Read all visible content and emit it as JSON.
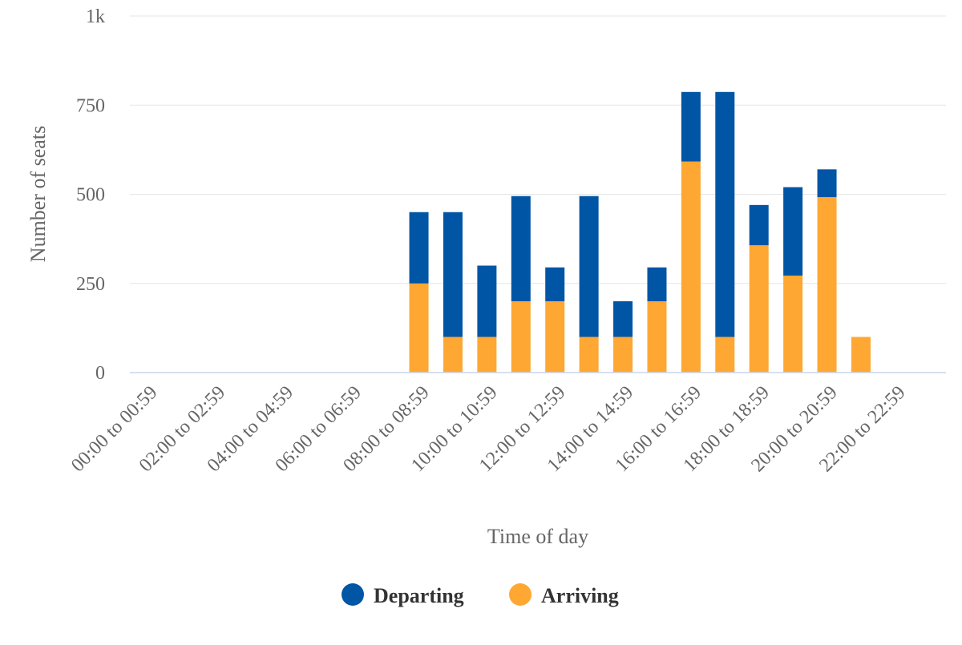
{
  "chart_data": {
    "type": "bar",
    "stacked": true,
    "categories": [
      "00:00 to 00:59",
      "01:00 to 01:59",
      "02:00 to 02:59",
      "03:00 to 03:59",
      "04:00 to 04:59",
      "05:00 to 05:59",
      "06:00 to 06:59",
      "07:00 to 07:59",
      "08:00 to 08:59",
      "09:00 to 09:59",
      "10:00 to 10:59",
      "11:00 to 11:59",
      "12:00 to 12:59",
      "13:00 to 13:59",
      "14:00 to 14:59",
      "15:00 to 15:59",
      "16:00 to 16:59",
      "17:00 to 17:59",
      "18:00 to 18:59",
      "19:00 to 19:59",
      "20:00 to 20:59",
      "21:00 to 21:59",
      "22:00 to 22:59",
      "23:00 to 23:59"
    ],
    "visible_category_labels": [
      "00:00 to 00:59",
      "02:00 to 02:59",
      "04:00 to 04:59",
      "06:00 to 06:59",
      "08:00 to 08:59",
      "10:00 to 10:59",
      "12:00 to 12:59",
      "14:00 to 14:59",
      "16:00 to 16:59",
      "18:00 to 18:59",
      "20:00 to 20:59",
      "22:00 to 22:59"
    ],
    "series": [
      {
        "name": "Arriving",
        "color": "#ffa733",
        "values": [
          0,
          0,
          0,
          0,
          0,
          0,
          0,
          0,
          250,
          100,
          100,
          200,
          200,
          100,
          100,
          200,
          592,
          100,
          357,
          272,
          492,
          100,
          0,
          0
        ]
      },
      {
        "name": "Departing",
        "color": "#0055a5",
        "values": [
          0,
          0,
          0,
          0,
          0,
          0,
          0,
          0,
          200,
          350,
          200,
          295,
          95,
          395,
          100,
          95,
          195,
          687,
          113,
          248,
          78,
          0,
          0,
          0
        ]
      }
    ],
    "xlabel": "Time of day",
    "ylabel": "Number of seats",
    "ylim": [
      0,
      1000
    ],
    "yticks": [
      0,
      250,
      500,
      750,
      1000
    ],
    "ytick_labels": [
      "0",
      "250",
      "500",
      "750",
      "1k"
    ],
    "grid": true,
    "legend": {
      "position": "bottom-center",
      "items": [
        {
          "name": "Departing",
          "color": "#0055a5"
        },
        {
          "name": "Arriving",
          "color": "#ffa733"
        }
      ]
    }
  }
}
